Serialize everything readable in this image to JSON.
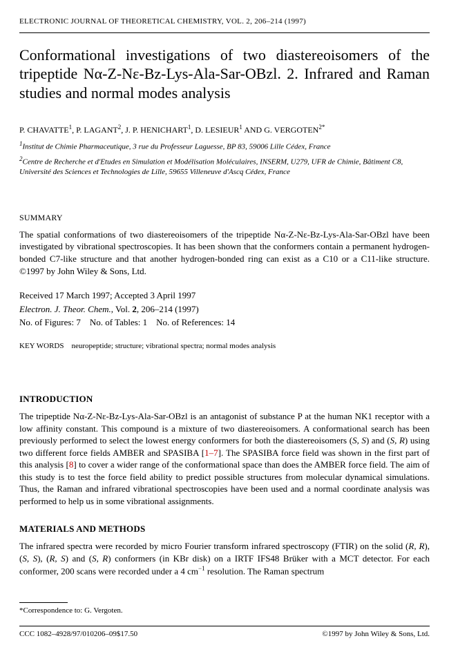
{
  "running_header": "ELECTRONIC JOURNAL OF THEORETICAL CHEMISTRY, VOL. 2, 206–214 (1997)",
  "title_html": "Conformational investigations of two diastereoisomers of the tripeptide Nα-Z-Nε-Bz-Lys-Ala-Sar-OBzl. 2. Infrared and Raman studies and normal modes analysis",
  "authors_html": "P. CHAVATTE<span class='sup'>1</span>, P. LAGANT<span class='sup'>2</span>, J. P. HENICHART<span class='sup'>1</span>, D. LESIEUR<span class='sup'>1</span> AND G. VERGOTEN<span class='sup'>2*</span>",
  "affiliations": [
    "<span class='sup'>1</span>Institut de Chimie Pharmaceutique, 3 rue du Professeur Laguesse, BP 83, 59006 Lille Cédex, France",
    "<span class='sup'>2</span>Centre de Recherche et d'Etudes en Simulation et Modélisation Moléculaires, INSERM, U279, UFR de Chimie, Bâtiment C8, Université des Sciences et Technologies de Lille, 59655 Villeneuve d'Ascq Cédex, France"
  ],
  "summary_head": "SUMMARY",
  "summary_text": "The spatial conformations of two diastereoisomers of the tripeptide Nα-Z-Nε-Bz-Lys-Ala-Sar-OBzl have been investigated by vibrational spectroscopies. It has been shown that the conformers contain a permanent hydrogen-bonded C7-like structure and that another hydrogen-bonded ring can exist as a C10 or a C11-like structure. ©1997 by John Wiley & Sons, Ltd.",
  "received": "Received 17 March 1997; Accepted 3 April 1997",
  "citation_html": "<i>Electron. J. Theor. Chem.</i>, Vol. <span class='vol-bold'>2</span>, 206–214 (1997)",
  "counts": "No. of Figures: 7 No. of Tables: 1 No. of References: 14",
  "keywords": "KEY WORDS neuropeptide; structure; vibrational spectra; normal modes analysis",
  "intro_head": "INTRODUCTION",
  "intro_text_html": "The tripeptide Nα-Z-Nε-Bz-Lys-Ala-Sar-OBzl is an antagonist of substance P at the human NK1 receptor with a low affinity constant. This compound is a mixture of two diastereoisomers. A conformational search has been previously performed to select the lowest energy conformers for both the diastereoisomers (<i>S, S</i>) and (<i>S, R</i>) using two different force fields AMBER and SPASIBA [<span class='intro-links'>1–7</span>]. The SPASIBA force field was shown in the first part of this analysis [<span class='intro-links'>8</span>] to cover a wider range of the conformational space than does the AMBER force field. The aim of this study is to test the force field ability to predict possible structures from molecular dynamical simulations. Thus, the Raman and infrared vibrational spectroscopies have been used and a normal coordinate analysis was performed to help us in some vibrational assignments.",
  "methods_head": "MATERIALS AND METHODS",
  "methods_text_html": "The infrared spectra were recorded by micro Fourier transform infrared spectroscopy (FTIR) on the solid (<i>R, R</i>), (<i>S, S</i>), (<i>R, S</i>) and (<i>S, R</i>) conformers (in KBr disk) on a IRTF IFS48 Brüker with a MCT detector. For each conformer, 200 scans were recorded under a 4 cm<span class='sup'>−1</span> resolution. The Raman spectrum",
  "footnote": "*Correspondence to: G. Vergoten.",
  "footer_left": "CCC 1082–4928/97/010206–09$17.50",
  "footer_right": "©1997 by John Wiley & Sons, Ltd."
}
